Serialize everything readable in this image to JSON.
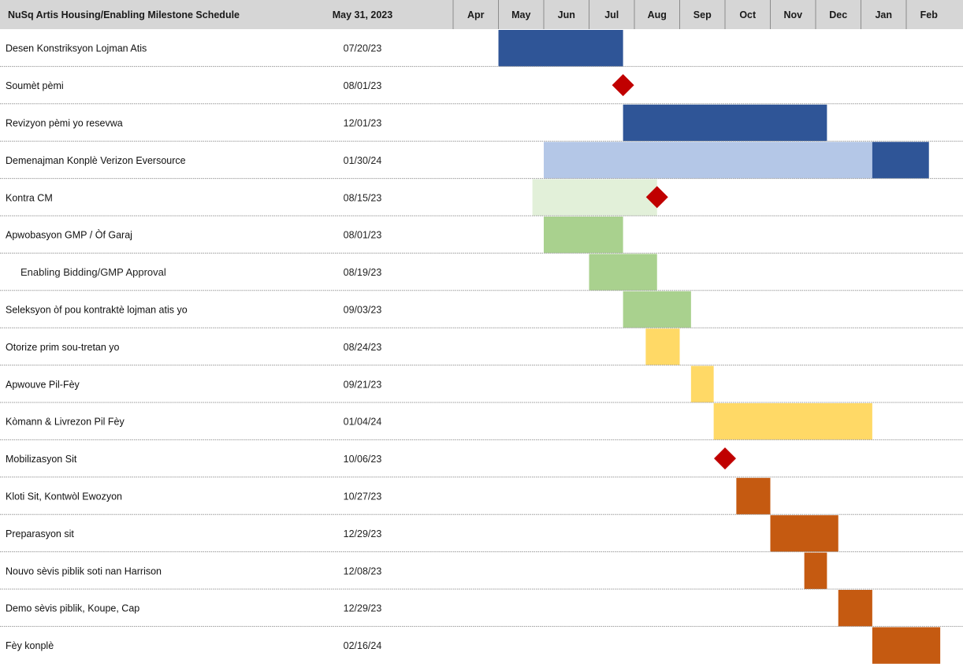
{
  "header": {
    "title": "NuSq Artis Housing/Enabling Milestone Schedule",
    "status_date": "May 31, 2023"
  },
  "colors": {
    "header_bg": "#d6d6d6",
    "dark_blue": "#2f5597",
    "light_blue": "#b4c7e7",
    "green": "#a9d18e",
    "light_green": "#e2f0d9",
    "yellow": "#ffd966",
    "orange": "#c55a11",
    "milestone_red": "#c00000"
  },
  "chart_data": {
    "type": "gantt",
    "months": [
      "Apr",
      "May",
      "Jun",
      "Jul",
      "Aug",
      "Sep",
      "Oct",
      "Nov",
      "Dec",
      "Jan",
      "Feb"
    ],
    "tasks": [
      {
        "label": "Desen Konstriksyon Lojman Atis",
        "date": "07/20/23",
        "bars": [
          {
            "start": 1.0,
            "end": 3.75,
            "color": "dark_blue"
          }
        ]
      },
      {
        "label": "Soumèt pèmi",
        "date": "08/01/23",
        "milestone": 3.75
      },
      {
        "label": "Revizyon pèmi yo resevwa",
        "date": "12/01/23",
        "bars": [
          {
            "start": 3.75,
            "end": 8.25,
            "color": "dark_blue"
          }
        ]
      },
      {
        "label": "Demenajman Konplè Verizon Eversource",
        "date": "01/30/24",
        "bars": [
          {
            "start": 2.0,
            "end": 9.25,
            "color": "light_blue"
          },
          {
            "start": 9.25,
            "end": 10.5,
            "color": "dark_blue"
          }
        ]
      },
      {
        "label": "Kontra CM",
        "date": "08/15/23",
        "bars": [
          {
            "start": 1.75,
            "end": 4.5,
            "color": "light_green"
          }
        ],
        "milestone": 4.5
      },
      {
        "label": "Apwobasyon GMP / Òf Garaj",
        "date": "08/01/23",
        "bars": [
          {
            "start": 2.0,
            "end": 3.75,
            "color": "green"
          }
        ]
      },
      {
        "label": "Enabling Bidding/GMP Approval",
        "date": "08/19/23",
        "bars": [
          {
            "start": 3.0,
            "end": 4.5,
            "color": "green"
          }
        ],
        "alt_style": true
      },
      {
        "label": "Seleksyon òf pou kontraktè lojman atis yo",
        "date": "09/03/23",
        "bars": [
          {
            "start": 3.75,
            "end": 5.25,
            "color": "green"
          }
        ]
      },
      {
        "label": "Otorize prim sou-tretan yo",
        "date": "08/24/23",
        "bars": [
          {
            "start": 4.25,
            "end": 5.0,
            "color": "yellow"
          }
        ]
      },
      {
        "label": "Apwouve Pil-Fèy",
        "date": "09/21/23",
        "bars": [
          {
            "start": 5.25,
            "end": 5.75,
            "color": "yellow"
          }
        ]
      },
      {
        "label": "Kòmann & Livrezon Pil Fèy",
        "date": "01/04/24",
        "bars": [
          {
            "start": 5.75,
            "end": 9.25,
            "color": "yellow"
          }
        ]
      },
      {
        "label": "Mobilizasyon Sit",
        "date": "10/06/23",
        "milestone": 6.0
      },
      {
        "label": "Kloti Sit, Kontwòl Ewozyon",
        "date": "10/27/23",
        "bars": [
          {
            "start": 6.25,
            "end": 7.0,
            "color": "orange"
          }
        ]
      },
      {
        "label": "Preparasyon sit",
        "date": "12/29/23",
        "bars": [
          {
            "start": 7.0,
            "end": 8.5,
            "color": "orange"
          }
        ]
      },
      {
        "label": "Nouvo sèvis piblik soti nan Harrison",
        "date": "12/08/23",
        "bars": [
          {
            "start": 7.75,
            "end": 8.25,
            "color": "orange"
          }
        ]
      },
      {
        "label": "Demo sèvis piblik, Koupe, Cap",
        "date": "12/29/23",
        "bars": [
          {
            "start": 8.5,
            "end": 9.25,
            "color": "orange"
          }
        ]
      },
      {
        "label": "Fèy konplè",
        "date": "02/16/24",
        "bars": [
          {
            "start": 9.25,
            "end": 10.75,
            "color": "orange"
          }
        ]
      }
    ]
  }
}
